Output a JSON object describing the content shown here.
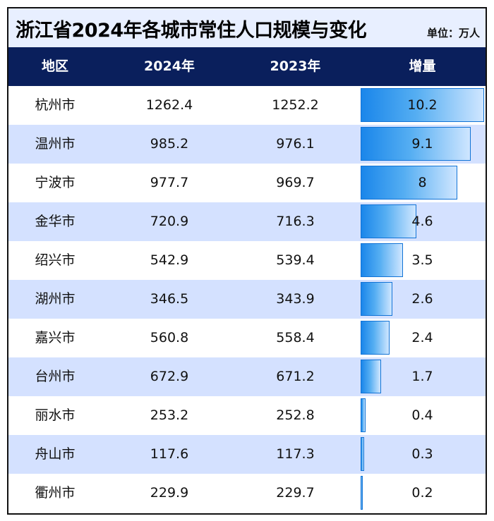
{
  "title": "浙江省2024年各城市常住人口规模与变化",
  "unit_label": "单位：万人",
  "columns": [
    "地区",
    "2024年",
    "2023年",
    "增量"
  ],
  "rows": [
    {
      "region": "杭州市",
      "y2024": "1262.4",
      "y2023": "1252.2",
      "increase": "10.2"
    },
    {
      "region": "温州市",
      "y2024": "985.2",
      "y2023": "976.1",
      "increase": "9.1"
    },
    {
      "region": "宁波市",
      "y2024": "977.7",
      "y2023": "969.7",
      "increase": "8"
    },
    {
      "region": "金华市",
      "y2024": "720.9",
      "y2023": "716.3",
      "increase": "4.6"
    },
    {
      "region": "绍兴市",
      "y2024": "542.9",
      "y2023": "539.4",
      "increase": "3.5"
    },
    {
      "region": "湖州市",
      "y2024": "346.5",
      "y2023": "343.9",
      "increase": "2.6"
    },
    {
      "region": "嘉兴市",
      "y2024": "560.8",
      "y2023": "558.4",
      "increase": "2.4"
    },
    {
      "region": "台州市",
      "y2024": "672.9",
      "y2023": "671.2",
      "increase": "1.7"
    },
    {
      "region": "丽水市",
      "y2024": "253.2",
      "y2023": "252.8",
      "increase": "0.4"
    },
    {
      "region": "舟山市",
      "y2024": "117.6",
      "y2023": "117.3",
      "increase": "0.3"
    },
    {
      "region": "衢州市",
      "y2024": "229.9",
      "y2023": "229.7",
      "increase": "0.2"
    }
  ],
  "colors": {
    "header_bg": "#0a1f5c",
    "title_bg": "#e8efff",
    "alt_row_bg": "#d4e1ff",
    "bar_start": "#1a86ea",
    "bar_end": "#cfe6ff"
  },
  "chart_data": {
    "type": "table",
    "title": "浙江省2024年各城市常住人口规模与变化",
    "unit": "万人",
    "categories": [
      "杭州市",
      "温州市",
      "宁波市",
      "金华市",
      "绍兴市",
      "湖州市",
      "嘉兴市",
      "台州市",
      "丽水市",
      "舟山市",
      "衢州市"
    ],
    "series": [
      {
        "name": "2024年",
        "values": [
          1262.4,
          985.2,
          977.7,
          720.9,
          542.9,
          346.5,
          560.8,
          672.9,
          253.2,
          117.6,
          229.9
        ]
      },
      {
        "name": "2023年",
        "values": [
          1252.2,
          976.1,
          969.7,
          716.3,
          539.4,
          343.9,
          558.4,
          671.2,
          252.8,
          117.3,
          229.7
        ]
      },
      {
        "name": "增量",
        "values": [
          10.2,
          9.1,
          8,
          4.6,
          3.5,
          2.6,
          2.4,
          1.7,
          0.4,
          0.3,
          0.2
        ]
      }
    ],
    "bar_max": 10.2
  }
}
